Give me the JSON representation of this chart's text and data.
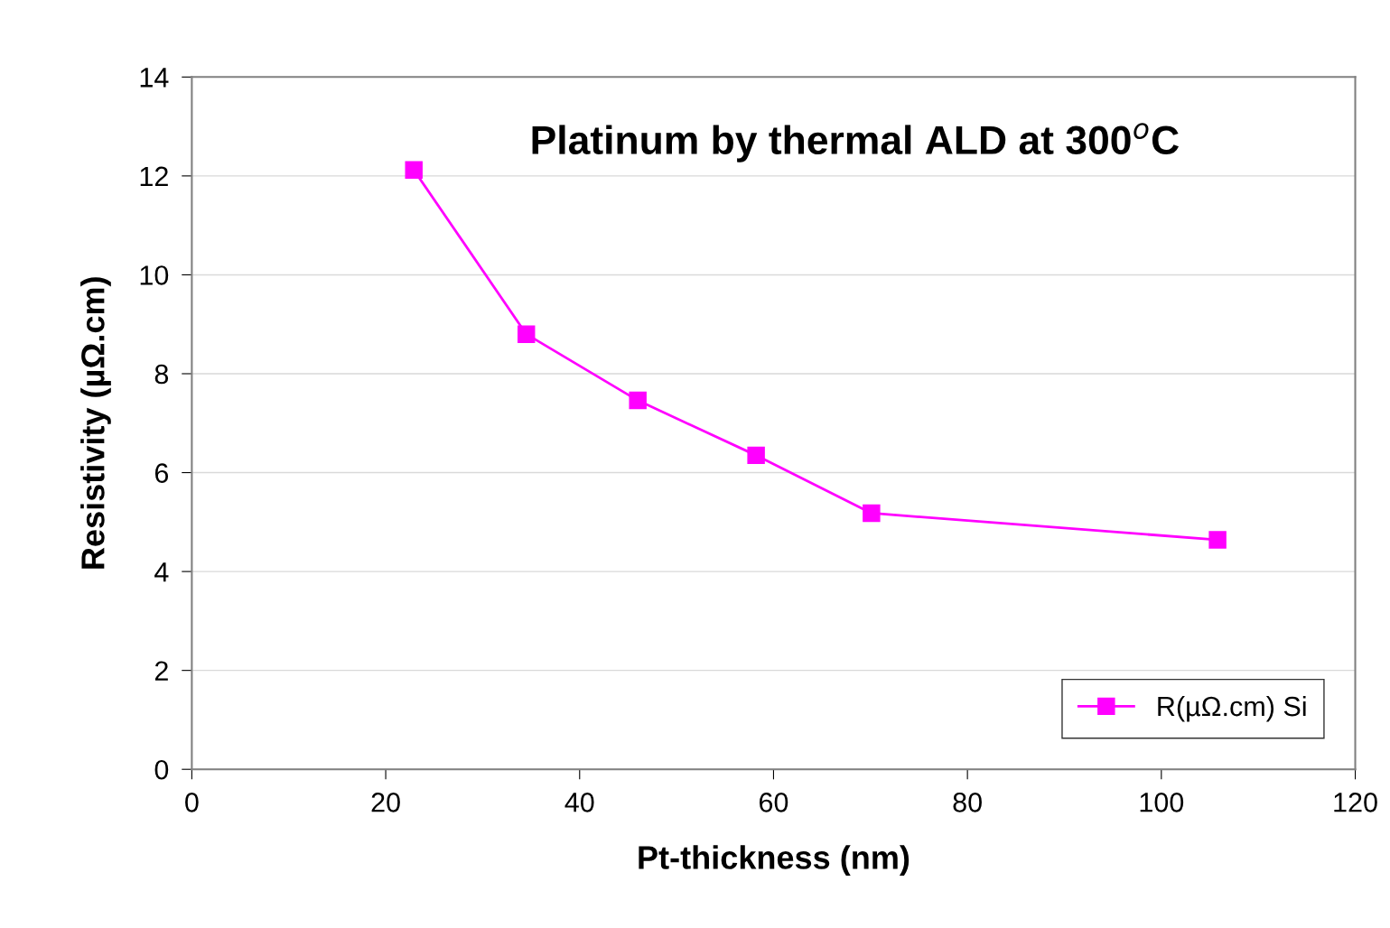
{
  "chart_data": {
    "type": "line",
    "title": "Platinum by thermal ALD at 300$^{o}$C",
    "xlabel": "Pt-thickness (nm)",
    "ylabel": "Resistivity (µΩ.cm)",
    "x": [
      22.9,
      34.5,
      46.0,
      58.2,
      70.1,
      105.8
    ],
    "series": [
      {
        "name": "R(µΩ.cm) Si",
        "color": "#ff00ff",
        "values": [
          12.12,
          8.8,
          7.46,
          6.35,
          5.18,
          4.64
        ]
      }
    ],
    "xlim": [
      0,
      120
    ],
    "xticks": [
      0,
      20,
      40,
      60,
      80,
      100,
      120
    ],
    "ylim": [
      0,
      14
    ],
    "yticks": [
      0,
      2,
      4,
      6,
      8,
      10,
      12,
      14
    ],
    "grid": "y",
    "legend": "bottom right",
    "marker": "square",
    "line_style": "solid"
  }
}
